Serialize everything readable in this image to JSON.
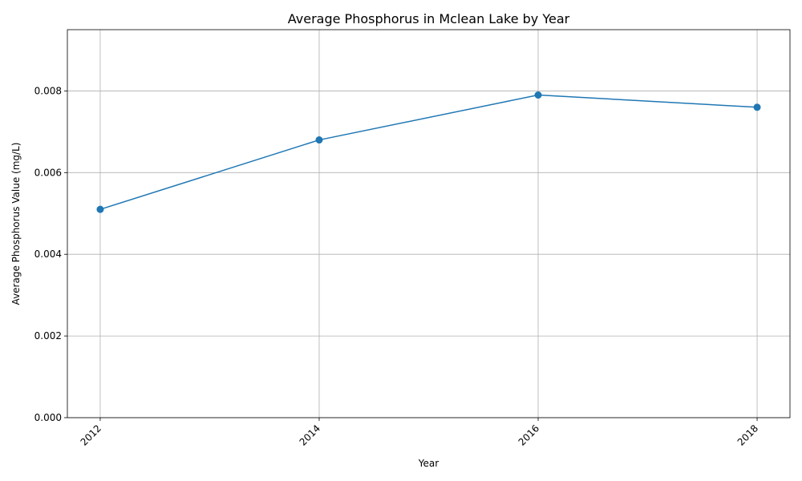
{
  "chart_data": {
    "type": "line",
    "title": "Average Phosphorus in Mclean Lake by Year",
    "xlabel": "Year",
    "ylabel": "Average Phosphorus Value (mg/L)",
    "x": [
      2012,
      2014,
      2016,
      2018
    ],
    "x_tick_labels": [
      "2012",
      "2014",
      "2016",
      "2018"
    ],
    "y_ticks": [
      0,
      0.002,
      0.004,
      0.006,
      0.008
    ],
    "y_tick_labels": [
      "0.000",
      "0.002",
      "0.004",
      "0.006",
      "0.008"
    ],
    "xlim": [
      2011.7,
      2018.3
    ],
    "ylim": [
      0,
      0.0095
    ],
    "grid": true,
    "series": [
      {
        "values": [
          0.0051,
          0.0068,
          0.0079,
          0.0076
        ],
        "color": "#1f77b4"
      }
    ]
  }
}
